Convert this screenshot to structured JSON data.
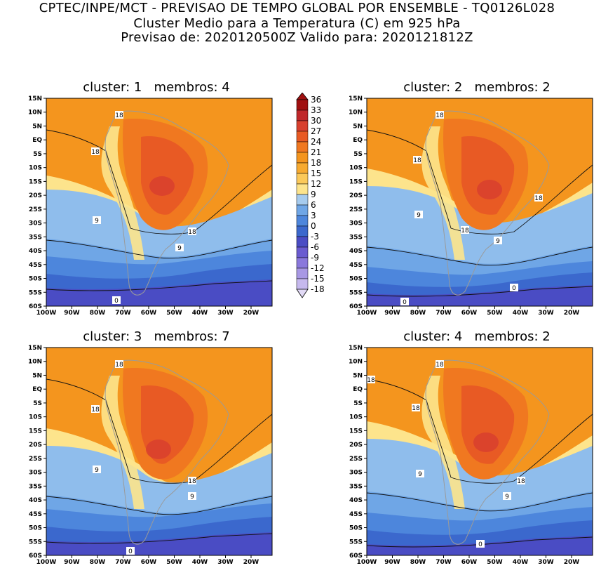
{
  "header": {
    "line1": "CPTEC/INPE/MCT - PREVISAO DE TEMPO GLOBAL POR ENSEMBLE - TQ0126L028",
    "line2": "Cluster Medio para a Temperatura (C) em 925 hPa",
    "line3": "Previsao de: 2020120500Z   Valido para: 2020121812Z"
  },
  "panels": [
    {
      "title": "cluster: 1   membros: 4"
    },
    {
      "title": "cluster: 2   membros: 2"
    },
    {
      "title": "cluster: 3   membros: 7"
    },
    {
      "title": "cluster: 4   membros: 2"
    }
  ],
  "axes": {
    "lat_labels": [
      "15N",
      "10N",
      "5N",
      "EQ",
      "5S",
      "10S",
      "15S",
      "20S",
      "25S",
      "30S",
      "35S",
      "40S",
      "45S",
      "50S",
      "55S",
      "60S"
    ],
    "lon_labels": [
      "100W",
      "90W",
      "80W",
      "70W",
      "60W",
      "50W",
      "40W",
      "30W",
      "20W"
    ]
  },
  "contour_labels": {
    "p1": [
      "18",
      "18",
      "18",
      "9",
      "9",
      "0"
    ],
    "p2": [
      "18",
      "18",
      "18",
      "18",
      "9",
      "9",
      "0",
      "0"
    ],
    "p3": [
      "18",
      "18",
      "18",
      "9",
      "9",
      "0"
    ],
    "p4": [
      "18",
      "18",
      "18",
      "18",
      "9",
      "9",
      "0"
    ]
  },
  "colorbar": {
    "levels": [
      "36",
      "33",
      "30",
      "27",
      "24",
      "21",
      "18",
      "15",
      "12",
      "9",
      "6",
      "3",
      "0",
      "-3",
      "-6",
      "-9",
      "-12",
      "-15",
      "-18"
    ],
    "colors": [
      "#a01010",
      "#c0282a",
      "#d8402e",
      "#e85a24",
      "#f07820",
      "#f4951e",
      "#f7aa30",
      "#fbc95a",
      "#fde48c",
      "#a6cbee",
      "#6fa6e6",
      "#4d86dc",
      "#3b68cd",
      "#4a4cc4",
      "#6a5bd0",
      "#8a78dc",
      "#a898e4",
      "#c6b9ee",
      "#e2daf6"
    ]
  }
}
